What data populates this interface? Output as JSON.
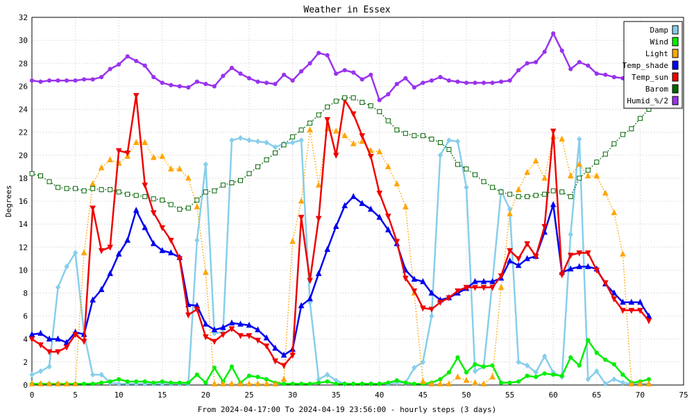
{
  "chart_data": {
    "type": "line",
    "title": "Weather in Essex",
    "xlabel": "From 2024-04-17:00 To 2024-04-19 23:56:00 - hourly steps (3 days)",
    "ylabel": "Degrees",
    "xlim": [
      0,
      75
    ],
    "ylim": [
      0,
      32
    ],
    "x_ticks": [
      0,
      5,
      10,
      15,
      20,
      25,
      30,
      35,
      40,
      45,
      50,
      55,
      60,
      65,
      70,
      75
    ],
    "y_ticks": [
      0,
      2,
      4,
      6,
      8,
      10,
      12,
      14,
      16,
      18,
      20,
      22,
      24,
      26,
      28,
      30,
      32
    ],
    "legend_position": "top-right",
    "series": [
      {
        "name": "Damp",
        "color": "#87ceeb",
        "style": "solid",
        "marker": "diamond",
        "values": [
          0.9,
          1.2,
          1.6,
          8.5,
          10.3,
          11.5,
          4.5,
          0.9,
          0.9,
          0.2,
          0.1,
          0.1,
          0.1,
          0.1,
          0.1,
          0.1,
          0.1,
          0.1,
          0.1,
          12.6,
          19.2,
          4.5,
          4.6,
          21.3,
          21.5,
          21.3,
          21.2,
          21.1,
          20.7,
          21.0,
          21.1,
          21.3,
          7.2,
          0.5,
          0.9,
          0.4,
          0.1,
          0.1,
          0.1,
          0.1,
          0.1,
          0.1,
          0.2,
          0.2,
          1.5,
          2.0,
          6.0,
          20.0,
          21.3,
          21.2,
          17.2,
          1.2,
          1.6,
          9.0,
          16.9,
          15.3,
          2.0,
          1.7,
          1.1,
          2.5,
          1.1,
          0.7,
          13.1,
          21.4,
          0.5,
          1.2,
          0.1,
          0.5,
          0.2,
          0.1,
          0.1,
          0.1
        ]
      },
      {
        "name": "Wind",
        "color": "#00ee00",
        "style": "solid",
        "marker": "circle",
        "values": [
          0.1,
          0.1,
          0.1,
          0.1,
          0.1,
          0.1,
          0.1,
          0.1,
          0.2,
          0.3,
          0.5,
          0.3,
          0.3,
          0.3,
          0.2,
          0.3,
          0.2,
          0.2,
          0.2,
          0.9,
          0.2,
          1.5,
          0.3,
          1.6,
          0.2,
          0.8,
          0.7,
          0.5,
          0.2,
          0.1,
          0.1,
          0.1,
          0.1,
          0.2,
          0.3,
          0.1,
          0.1,
          0.1,
          0.1,
          0.1,
          0.1,
          0.2,
          0.4,
          0.2,
          0.1,
          0.1,
          0.2,
          0.5,
          1.1,
          2.4,
          1.1,
          1.8,
          1.6,
          1.7,
          0.2,
          0.2,
          0.3,
          0.8,
          0.7,
          1.0,
          0.9,
          0.8,
          2.4,
          1.7,
          3.9,
          2.8,
          2.2,
          1.8,
          0.9,
          0.2,
          0.3,
          0.5
        ]
      },
      {
        "name": "Light",
        "color": "#ffa500",
        "style": "dotted",
        "marker": "triangle",
        "values": [
          0.1,
          0.1,
          0.1,
          0.1,
          0.1,
          0.1,
          11.5,
          17.5,
          18.9,
          19.6,
          19.3,
          19.9,
          21.1,
          21.1,
          19.8,
          19.9,
          18.8,
          18.8,
          18.0,
          15.5,
          9.8,
          0.1,
          0.1,
          0.1,
          0.1,
          0.1,
          0.1,
          0.1,
          0.1,
          0.5,
          12.5,
          16.0,
          22.2,
          17.4,
          22.3,
          22.1,
          21.7,
          21.0,
          21.2,
          20.4,
          20.3,
          19.0,
          17.5,
          15.5,
          8.0,
          0.3,
          0.1,
          0.1,
          0.1,
          0.7,
          0.4,
          0.2,
          0.1,
          0.7,
          8.5,
          14.9,
          17.0,
          18.5,
          19.5,
          18.0,
          21.6,
          21.4,
          18.2,
          19.2,
          18.2,
          18.2,
          16.7,
          15.0,
          11.4,
          0.1,
          0.1,
          0.1
        ]
      },
      {
        "name": "Temp_shade",
        "color": "#0000ee",
        "style": "solid",
        "marker": "triangle",
        "values": [
          4.4,
          4.5,
          4.0,
          4.0,
          3.7,
          4.6,
          4.4,
          7.4,
          8.3,
          9.7,
          11.4,
          12.6,
          15.2,
          13.7,
          12.3,
          11.7,
          11.5,
          11.1,
          7.0,
          6.9,
          5.3,
          4.8,
          5.0,
          5.4,
          5.3,
          5.2,
          4.8,
          4.1,
          3.2,
          2.6,
          3.1,
          6.9,
          7.5,
          9.7,
          11.8,
          13.8,
          15.6,
          16.4,
          15.8,
          15.3,
          14.6,
          13.5,
          12.3,
          10.0,
          9.2,
          9.0,
          8.0,
          7.4,
          7.6,
          8.0,
          8.4,
          9.0,
          9.0,
          9.0,
          9.3,
          10.8,
          10.4,
          11.0,
          11.2,
          13.3,
          15.7,
          9.8,
          10.1,
          10.3,
          10.3,
          10.1,
          8.8,
          8.0,
          7.2,
          7.2,
          7.2,
          6.0
        ]
      },
      {
        "name": "Temp_sun",
        "color": "#ee0000",
        "style": "solid",
        "marker": "triangle-down",
        "values": [
          4.0,
          3.5,
          2.9,
          2.9,
          3.3,
          4.4,
          3.8,
          15.4,
          11.7,
          12.0,
          20.4,
          20.2,
          25.2,
          17.4,
          15.0,
          13.7,
          12.6,
          11.0,
          6.1,
          6.6,
          4.2,
          3.8,
          4.4,
          4.9,
          4.3,
          4.3,
          3.9,
          3.4,
          2.1,
          1.7,
          2.6,
          14.6,
          9.1,
          14.5,
          23.1,
          20.0,
          24.8,
          23.6,
          21.7,
          19.9,
          16.7,
          14.7,
          12.5,
          9.3,
          8.2,
          6.7,
          6.6,
          7.2,
          7.6,
          8.2,
          8.5,
          8.5,
          8.5,
          8.5,
          9.5,
          11.7,
          11.0,
          12.3,
          11.2,
          13.8,
          22.1,
          9.6,
          11.3,
          11.5,
          11.5,
          10.0,
          8.9,
          7.5,
          6.5,
          6.5,
          6.5,
          5.6
        ]
      },
      {
        "name": "Barom",
        "color": "#006400",
        "style": "dotted",
        "marker": "square",
        "values": [
          18.4,
          18.2,
          17.7,
          17.2,
          17.1,
          17.1,
          16.9,
          17.1,
          17.0,
          17.0,
          16.8,
          16.6,
          16.5,
          16.4,
          16.2,
          16.1,
          15.7,
          15.3,
          15.4,
          16.1,
          16.8,
          16.9,
          17.4,
          17.6,
          17.8,
          18.4,
          19.0,
          19.6,
          20.2,
          20.9,
          21.6,
          22.2,
          22.8,
          23.5,
          24.2,
          24.7,
          25.0,
          25.0,
          24.6,
          24.3,
          23.8,
          23.0,
          22.2,
          21.9,
          21.7,
          21.7,
          21.4,
          21.1,
          20.5,
          19.2,
          18.8,
          18.3,
          17.7,
          17.2,
          16.8,
          16.6,
          16.4,
          16.4,
          16.5,
          16.6,
          16.9,
          16.8,
          16.4,
          18.0,
          18.7,
          19.4,
          20.1,
          21.0,
          21.8,
          22.3,
          23.2,
          24.0
        ]
      },
      {
        "name": "Humid_%/2",
        "color": "#9933ee",
        "style": "solid",
        "marker": "circle",
        "values": [
          26.5,
          26.4,
          26.5,
          26.5,
          26.5,
          26.5,
          26.6,
          26.6,
          26.8,
          27.5,
          27.9,
          28.6,
          28.2,
          27.8,
          26.8,
          26.3,
          26.1,
          26.0,
          25.9,
          26.4,
          26.2,
          26.0,
          26.9,
          27.6,
          27.1,
          26.7,
          26.4,
          26.3,
          26.2,
          27.0,
          26.5,
          27.3,
          28.0,
          28.9,
          28.7,
          27.1,
          27.4,
          27.2,
          26.6,
          27.0,
          24.8,
          25.3,
          26.2,
          26.7,
          25.9,
          26.3,
          26.5,
          26.8,
          26.5,
          26.4,
          26.3,
          26.3,
          26.3,
          26.3,
          26.4,
          26.5,
          27.4,
          28.0,
          28.1,
          29.0,
          30.6,
          29.1,
          27.5,
          28.1,
          27.8,
          27.1,
          27.0,
          26.8,
          26.7,
          26.8,
          26.6,
          26.7
        ]
      }
    ]
  }
}
